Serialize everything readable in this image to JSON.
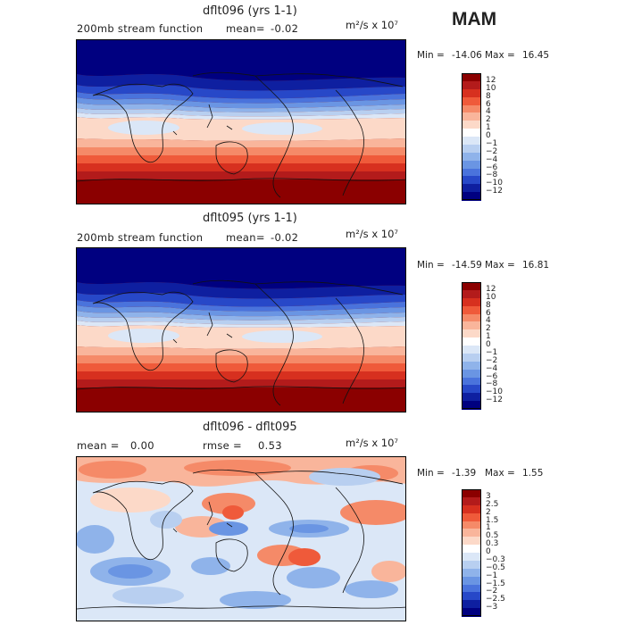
{
  "season": "MAM",
  "panels": [
    {
      "id": "p1",
      "title": "dflt096 (yrs 1-1)",
      "subtitle_left": "200mb stream function",
      "stat_label": "mean=",
      "stat_value": "-0.02",
      "units": "m²/s x 10⁷",
      "min_label": "Min =",
      "min_value": "-14.06",
      "max_label": "Max =",
      "max_value": "16.45",
      "colorbar": {
        "labels": [
          "12",
          "10",
          "8",
          "6",
          "4",
          "2",
          "1",
          "0",
          "−1",
          "−2",
          "−4",
          "−6",
          "−8",
          "−10",
          "−12"
        ],
        "colors": [
          "#8b0000",
          "#b31b1b",
          "#d7301f",
          "#ef5a3a",
          "#f58a68",
          "#f9b59b",
          "#fcd9c8",
          "#ffffff",
          "#dbe7f7",
          "#b8cff0",
          "#8fb3ea",
          "#6a95e3",
          "#4a73dc",
          "#2748c8",
          "#0e1fa0",
          "#000080"
        ]
      }
    },
    {
      "id": "p2",
      "title": "dflt095 (yrs 1-1)",
      "subtitle_left": "200mb stream function",
      "stat_label": "mean=",
      "stat_value": "-0.02",
      "units": "m²/s x 10⁷",
      "min_label": "Min =",
      "min_value": "-14.59",
      "max_label": "Max =",
      "max_value": "16.81",
      "colorbar": {
        "labels": [
          "12",
          "10",
          "8",
          "6",
          "4",
          "2",
          "1",
          "0",
          "−1",
          "−2",
          "−4",
          "−6",
          "−8",
          "−10",
          "−12"
        ],
        "colors": [
          "#8b0000",
          "#b31b1b",
          "#d7301f",
          "#ef5a3a",
          "#f58a68",
          "#f9b59b",
          "#fcd9c8",
          "#ffffff",
          "#dbe7f7",
          "#b8cff0",
          "#8fb3ea",
          "#6a95e3",
          "#4a73dc",
          "#2748c8",
          "#0e1fa0",
          "#000080"
        ]
      }
    },
    {
      "id": "p3",
      "title": "dflt096 - dflt095",
      "stat_label": "mean =",
      "stat_value": "0.00",
      "rmse_label": "rmse =",
      "rmse_value": "0.53",
      "units": "m²/s x 10⁷",
      "min_label": "Min =",
      "min_value": "-1.39",
      "max_label": "Max =",
      "max_value": "1.55",
      "colorbar": {
        "labels": [
          "3",
          "2.5",
          "2",
          "1.5",
          "1",
          "0.5",
          "0.3",
          "0",
          "−0.3",
          "−0.5",
          "−1",
          "−1.5",
          "−2",
          "−2.5",
          "−3"
        ],
        "colors": [
          "#8b0000",
          "#b31b1b",
          "#d7301f",
          "#ef5a3a",
          "#f58a68",
          "#f9b59b",
          "#fcd9c8",
          "#ffffff",
          "#dbe7f7",
          "#b8cff0",
          "#8fb3ea",
          "#6a95e3",
          "#4a73dc",
          "#2748c8",
          "#0e1fa0",
          "#000080"
        ]
      }
    }
  ]
}
